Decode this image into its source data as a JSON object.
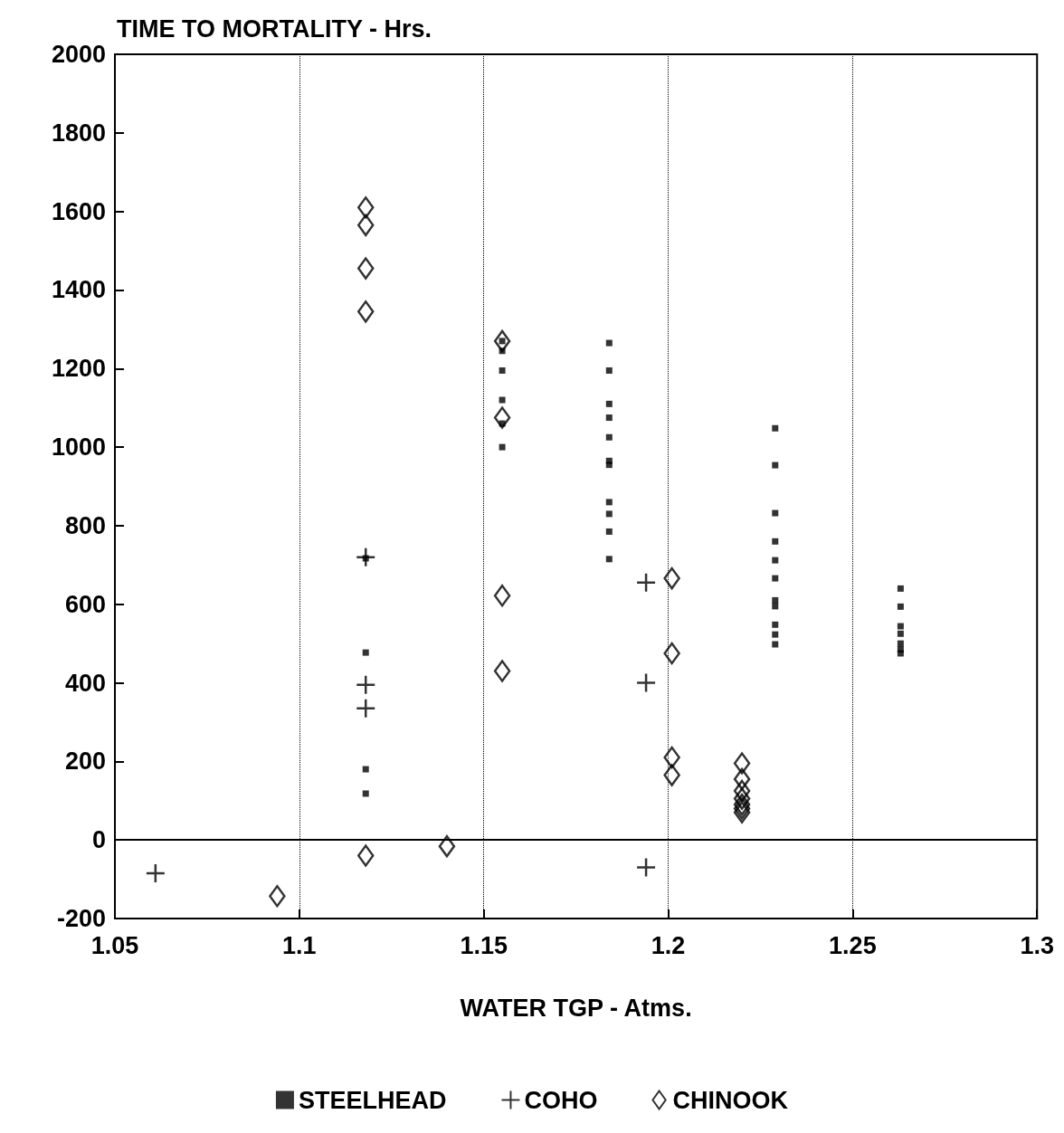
{
  "chart_data": {
    "type": "scatter",
    "xlabel": "WATER TGP - Atms.",
    "ylabel": "TIME TO MORTALITY - Hrs.",
    "xlim": [
      1.05,
      1.3
    ],
    "xticks": [
      1.05,
      1.1,
      1.15,
      1.2,
      1.25,
      1.3
    ],
    "ylim": [
      -200,
      2000
    ],
    "yticks": [
      -200,
      0,
      200,
      400,
      600,
      800,
      1000,
      1200,
      1400,
      1600,
      1800,
      2000
    ],
    "grid": "x",
    "legend": "bottom",
    "ref_lines": [
      {
        "axis": "y",
        "value": 0,
        "label": null
      }
    ],
    "series": [
      {
        "name": "STEELHEAD",
        "color": "#000000",
        "marker": "square",
        "x": [
          1.118,
          1.118,
          1.118,
          1.118,
          1.155,
          1.155,
          1.155,
          1.155,
          1.155,
          1.155,
          1.184,
          1.184,
          1.184,
          1.184,
          1.184,
          1.184,
          1.184,
          1.184,
          1.184,
          1.184,
          1.184,
          1.229,
          1.229,
          1.229,
          1.229,
          1.229,
          1.229,
          1.229,
          1.229,
          1.229,
          1.229,
          1.229,
          1.263,
          1.263,
          1.263,
          1.263,
          1.263,
          1.263,
          1.263
        ],
        "values": [
          717,
          477,
          180,
          118,
          1270,
          1245,
          1195,
          1120,
          1060,
          1000,
          1265,
          1195,
          1110,
          1075,
          1025,
          965,
          955,
          860,
          830,
          785,
          715,
          1048,
          954,
          832,
          760,
          712,
          666,
          610,
          595,
          548,
          523,
          498,
          640,
          594,
          544,
          525,
          500,
          485,
          475
        ]
      },
      {
        "name": "COHO",
        "color": "#000000",
        "marker": "cross",
        "x": [
          1.061,
          1.118,
          1.118,
          1.118,
          1.194,
          1.194,
          1.194
        ],
        "values": [
          -85,
          720,
          395,
          335,
          655,
          400,
          -70
        ]
      },
      {
        "name": "CHINOOK",
        "color": "#000000",
        "marker": "diamond",
        "x": [
          1.094,
          1.118,
          1.118,
          1.118,
          1.118,
          1.118,
          1.14,
          1.155,
          1.155,
          1.155,
          1.155,
          1.201,
          1.201,
          1.201,
          1.201,
          1.22,
          1.22,
          1.22,
          1.22,
          1.22,
          1.22,
          1.22
        ],
        "values": [
          -143,
          1610,
          1565,
          1455,
          1345,
          -40,
          -16,
          1270,
          1075,
          622,
          430,
          666,
          475,
          210,
          165,
          195,
          155,
          125,
          105,
          90,
          80,
          70
        ]
      }
    ]
  }
}
